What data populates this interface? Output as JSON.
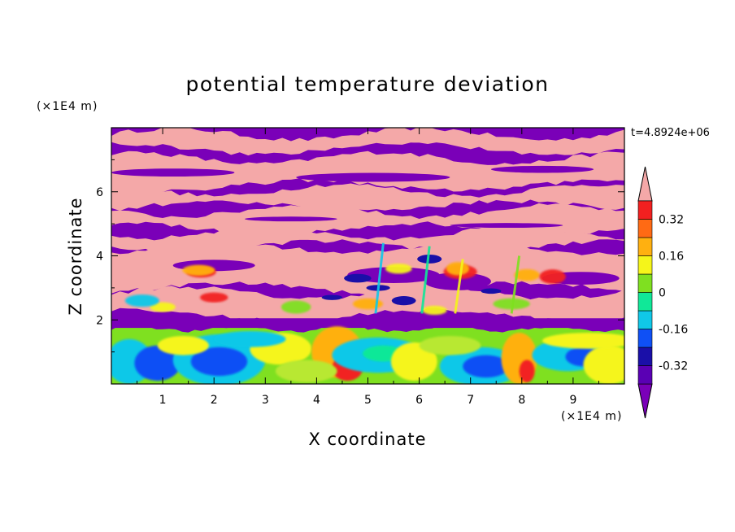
{
  "chart_data": {
    "type": "heatmap",
    "title": "potential temperature deviation",
    "time_label": "t=4.8924e+06",
    "xlabel": "X coordinate",
    "ylabel": "Z coordinate",
    "x_unit": "(×1E4 m)",
    "y_unit": "(×1E4 m)",
    "xlim": [
      0,
      10
    ],
    "ylim": [
      0,
      8
    ],
    "x_ticks": [
      "1",
      "2",
      "3",
      "4",
      "5",
      "6",
      "7",
      "8",
      "9"
    ],
    "y_ticks": [
      "2",
      "4",
      "6"
    ],
    "colorbar": {
      "levels": [
        -0.4,
        -0.32,
        -0.24,
        -0.16,
        -0.08,
        0,
        0.08,
        0.16,
        0.24,
        0.32,
        0.4
      ],
      "tick_labels": [
        "-0.32",
        "-0.16",
        "0",
        "0.16",
        "0.32"
      ],
      "extend": "both",
      "under_color": "#7a00b8",
      "over_color": "#f4a8a8",
      "colors": [
        "#5a00b4",
        "#1a0fa8",
        "#0f50f5",
        "#10c8e8",
        "#10e898",
        "#7fe020",
        "#f5f51a",
        "#ffb010",
        "#ff6a14",
        "#f22020"
      ]
    },
    "regions": [
      {
        "band": "upper (z 2.1–8)",
        "pattern": "alternating horizontal layers of pink (> 0.4) and purple (< -0.4)"
      },
      {
        "band": "transition (z ~2–4.5)",
        "pattern": "thin red/yellow/green/blue filaments at layer edges"
      },
      {
        "band": "lower (z 0–2)",
        "pattern": "turbulent eddies of green, yellow, cyan and blue"
      }
    ]
  }
}
